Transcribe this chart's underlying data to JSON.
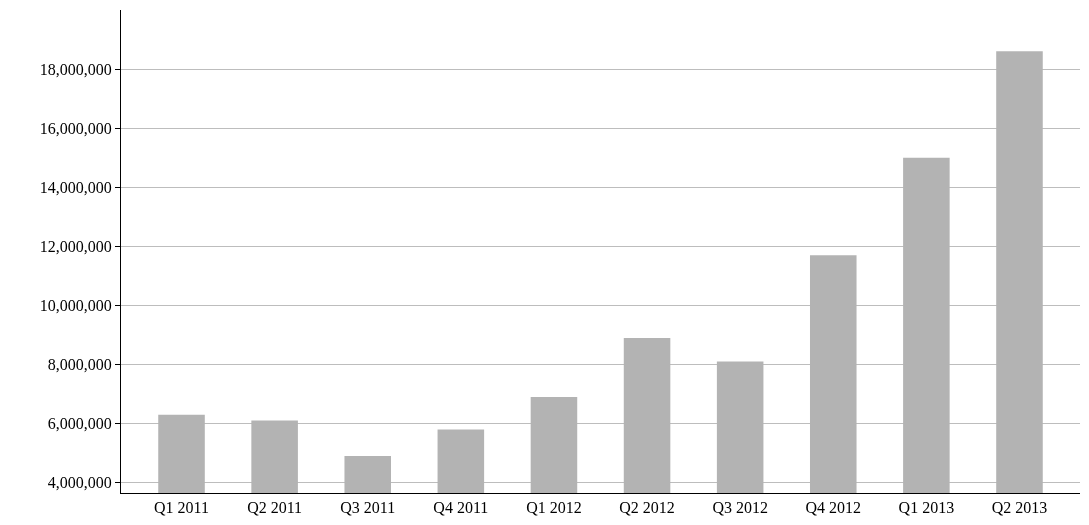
{
  "chart_data": {
    "type": "bar",
    "categories": [
      "Q1 2011",
      "Q2 2011",
      "Q3 2011",
      "Q4 2011",
      "Q1 2012",
      "Q2 2012",
      "Q3 2012",
      "Q4 2012",
      "Q1 2013",
      "Q2 2013"
    ],
    "values": [
      6300000,
      6100000,
      4900000,
      5800000,
      6900000,
      8900000,
      8100000,
      11700000,
      15000000,
      18600000
    ],
    "color": "#b3b3b3",
    "ylim": [
      3650000,
      20000000
    ],
    "yticks": [
      {
        "value": 4000000,
        "label": "4,000,000"
      },
      {
        "value": 6000000,
        "label": "6,000,000"
      },
      {
        "value": 8000000,
        "label": "8,000,000"
      },
      {
        "value": 10000000,
        "label": "10,000,000"
      },
      {
        "value": 12000000,
        "label": "12,000,000"
      },
      {
        "value": 14000000,
        "label": "14,000,000"
      },
      {
        "value": 16000000,
        "label": "16,000,000"
      },
      {
        "value": 18000000,
        "label": "18,000,000"
      }
    ],
    "grid": "y",
    "legend": false
  }
}
